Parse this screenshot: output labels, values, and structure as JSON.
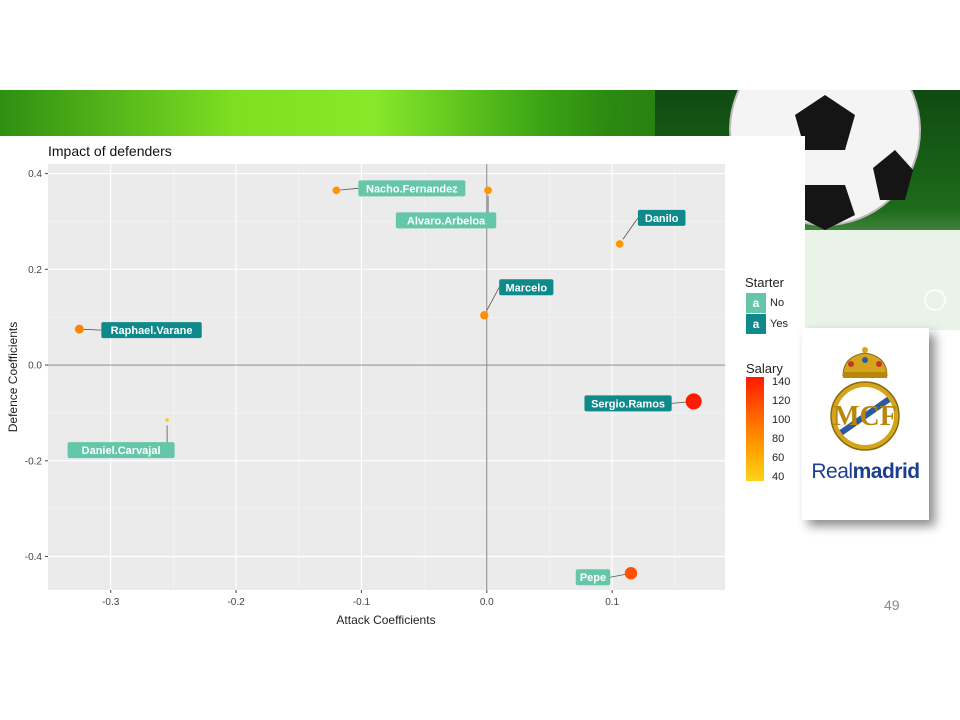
{
  "slide": {
    "page_number": "49",
    "logo_text_light": "Real",
    "logo_text_bold": "madrid"
  },
  "legend": {
    "starter_title": "Starter",
    "starter_key_glyph": "a",
    "starter_no": "No",
    "starter_yes": "Yes",
    "salary_title": "Salary",
    "salary_ticks": [
      "140",
      "120",
      "100",
      "80",
      "60",
      "40"
    ]
  },
  "colors": {
    "panel_bg": "#ebebeb",
    "grid": "#ffffff",
    "label_no": "#66c6a9",
    "label_yes": "#0e8a8a",
    "banner_green": "#6ed61a"
  },
  "chart_data": {
    "type": "scatter",
    "title": "Impact of defenders",
    "xlabel": "Attack Coefficients",
    "ylabel": "Defence Coefficients",
    "xlim": [
      -0.35,
      0.19
    ],
    "ylim": [
      -0.47,
      0.42
    ],
    "xticks": [
      -0.3,
      -0.2,
      -0.1,
      0.0,
      0.1
    ],
    "xtick_labels": [
      "-0.3",
      "-0.2",
      "-0.1",
      "0.0",
      "0.1"
    ],
    "yticks": [
      -0.4,
      -0.2,
      0.0,
      0.2,
      0.4
    ],
    "ytick_labels": [
      "-0.4",
      "-0.2",
      "0.0",
      "0.2",
      "0.4"
    ],
    "grid": true,
    "size_and_color": "Salary",
    "label_fill": "Starter",
    "points": [
      {
        "name": "Nacho.Fernandez",
        "x": -0.12,
        "y": 0.365,
        "salary": 70,
        "starter": "No"
      },
      {
        "name": "Alvaro.Arbeloa",
        "x": 0.001,
        "y": 0.365,
        "salary": 70,
        "starter": "No"
      },
      {
        "name": "Danilo",
        "x": 0.106,
        "y": 0.253,
        "salary": 70,
        "starter": "Yes"
      },
      {
        "name": "Marcelo",
        "x": -0.002,
        "y": 0.104,
        "salary": 75,
        "starter": "Yes"
      },
      {
        "name": "Raphael.Varane",
        "x": -0.325,
        "y": 0.075,
        "salary": 80,
        "starter": "Yes"
      },
      {
        "name": "Sergio.Ramos",
        "x": 0.165,
        "y": -0.076,
        "salary": 140,
        "starter": "Yes"
      },
      {
        "name": "Daniel.Carvajal",
        "x": -0.255,
        "y": -0.115,
        "salary": 35,
        "starter": "No"
      },
      {
        "name": "Pepe",
        "x": 0.115,
        "y": -0.435,
        "salary": 110,
        "starter": "No"
      }
    ]
  }
}
